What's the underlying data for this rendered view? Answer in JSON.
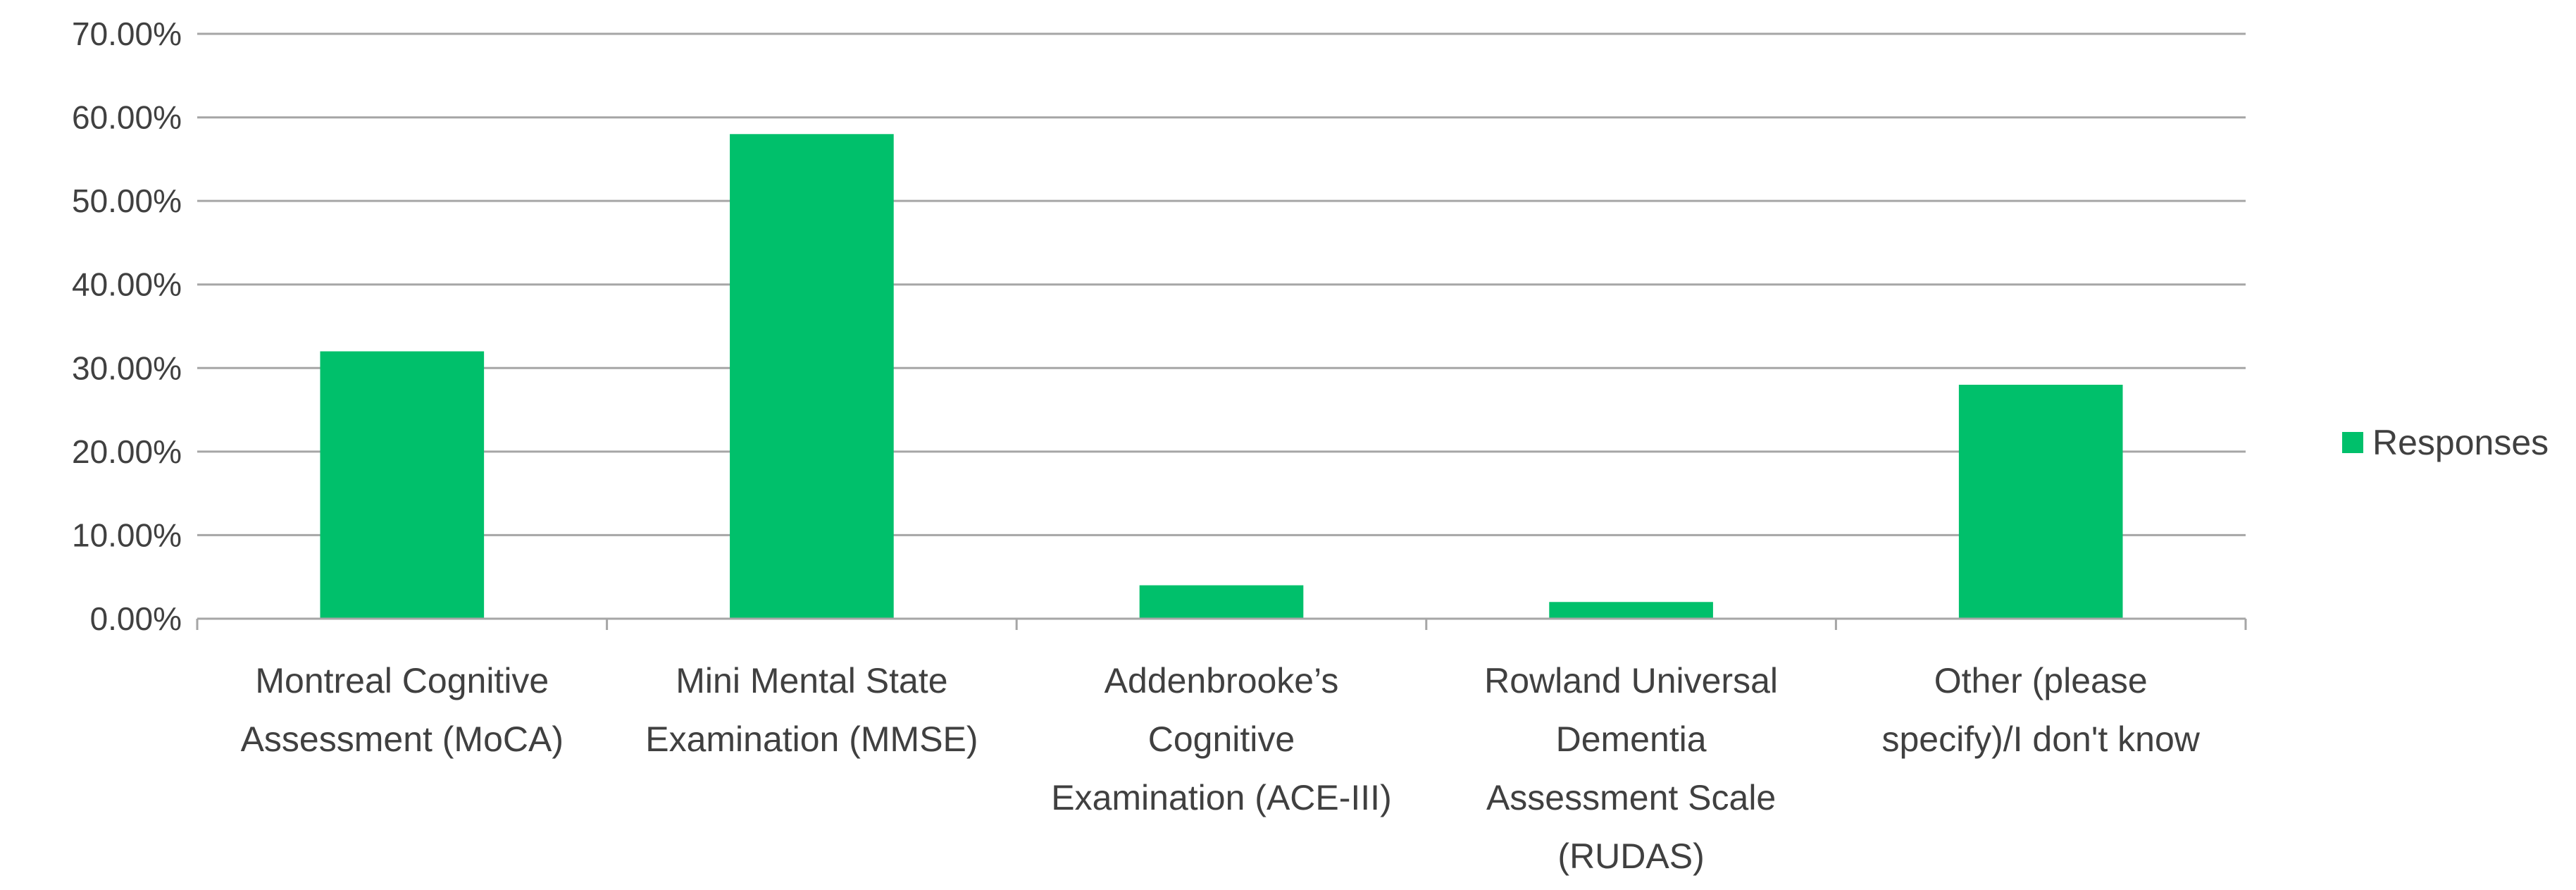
{
  "chart_data": {
    "type": "bar",
    "title": "",
    "xlabel": "",
    "ylabel": "",
    "categories": [
      "Montreal Cognitive Assessment (MoCA)",
      "Mini Mental State Examination (MMSE)",
      "Addenbrooke’s Cognitive Examination (ACE-III)",
      "Rowland Universal Dementia Assessment Scale (RUDAS)",
      "Other (please specify)/I don't know"
    ],
    "category_lines": [
      [
        "Montreal Cognitive",
        "Assessment (MoCA)"
      ],
      [
        "Mini Mental State",
        "Examination (MMSE)"
      ],
      [
        "Addenbrooke’s",
        "Cognitive",
        "Examination (ACE-III)"
      ],
      [
        "Rowland Universal",
        "Dementia",
        "Assessment Scale",
        "(RUDAS)"
      ],
      [
        "Other (please",
        "specify)/I don't know"
      ]
    ],
    "series": [
      {
        "name": "Responses",
        "values": [
          32.0,
          58.0,
          4.0,
          2.0,
          28.0
        ]
      }
    ],
    "ylim": [
      0,
      70
    ],
    "yticks": [
      0,
      10,
      20,
      30,
      40,
      50,
      60,
      70
    ],
    "ytick_labels": [
      "0.00%",
      "10.00%",
      "20.00%",
      "30.00%",
      "40.00%",
      "50.00%",
      "60.00%",
      "70.00%"
    ],
    "grid": true,
    "legend": {
      "position": "right",
      "entries": [
        "Responses"
      ]
    },
    "colors": {
      "bar": "#00c06b",
      "grid": "#a6a6a6",
      "text": "#404040"
    }
  }
}
